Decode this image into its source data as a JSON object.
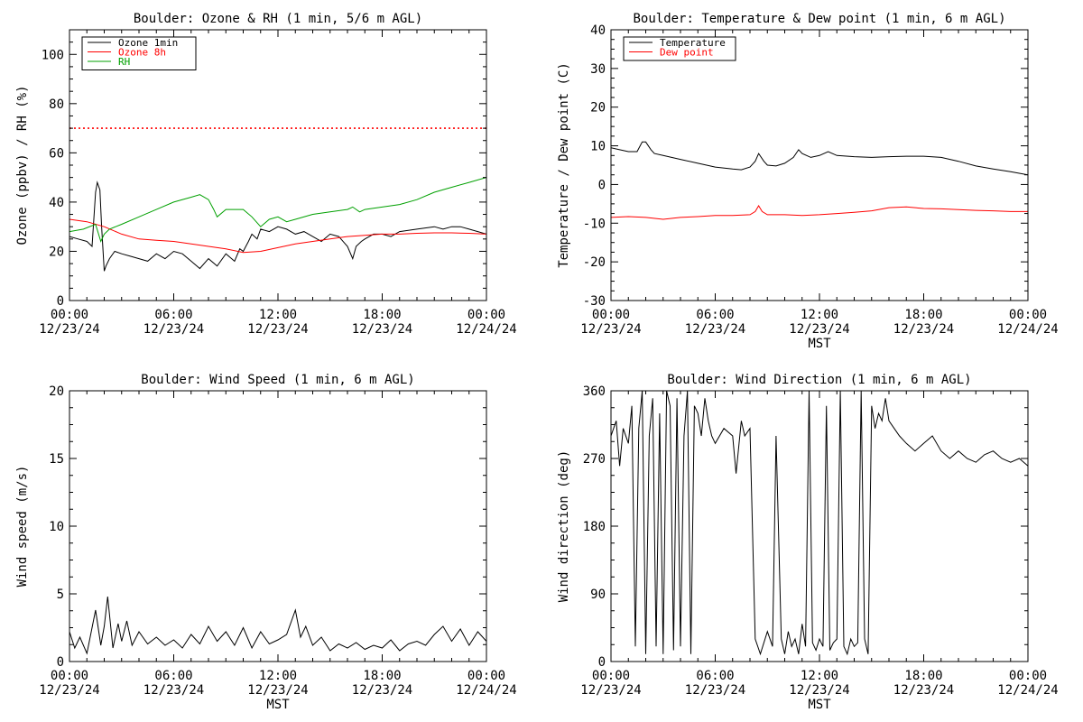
{
  "colors": {
    "background": "#ffffff",
    "axes": "#000000",
    "black_series": "#000000",
    "red_series": "#ff0000",
    "green_series": "#00a000"
  },
  "chart_data": [
    {
      "id": "ozone-rh",
      "type": "line",
      "title": "Boulder: Ozone & RH (1 min, 5/6 m AGL)",
      "xlabel": "",
      "ylabel": "Ozone (ppbv) / RH (%)",
      "xlim": [
        0,
        24
      ],
      "ylim": [
        0,
        110
      ],
      "x_ticks": [
        0,
        6,
        12,
        18,
        24
      ],
      "x_tick_labels": [
        [
          "00:00",
          "12/23/24"
        ],
        [
          "06:00",
          "12/23/24"
        ],
        [
          "12:00",
          "12/23/24"
        ],
        [
          "18:00",
          "12/23/24"
        ],
        [
          "00:00",
          "12/24/24"
        ]
      ],
      "y_ticks": [
        0,
        20,
        40,
        60,
        80,
        100
      ],
      "y_tick_labels": [
        "0",
        "20",
        "40",
        "60",
        "80",
        "100"
      ],
      "grid": false,
      "legend_position": "top-left",
      "series": [
        {
          "name": "Ozone 1min",
          "color": "#000000",
          "x": [
            0,
            0.5,
            1.0,
            1.3,
            1.5,
            1.6,
            1.75,
            1.85,
            2.0,
            2.1,
            2.3,
            2.6,
            3.0,
            3.5,
            4.0,
            4.5,
            5.0,
            5.5,
            6.0,
            6.5,
            7.0,
            7.5,
            8.0,
            8.5,
            9.0,
            9.5,
            9.8,
            10.0,
            10.3,
            10.5,
            10.8,
            11.0,
            11.5,
            12.0,
            12.5,
            13.0,
            13.5,
            14.0,
            14.5,
            15.0,
            15.5,
            16.0,
            16.3,
            16.5,
            16.8,
            17.0,
            17.5,
            18.0,
            18.5,
            19.0,
            20.0,
            21.0,
            21.5,
            22.0,
            22.5,
            23.0,
            23.5,
            24.0
          ],
          "y": [
            26,
            25,
            24,
            22,
            44,
            48,
            45,
            30,
            12,
            14,
            17,
            20,
            19,
            18,
            17,
            16,
            19,
            17,
            20,
            19,
            16,
            13,
            17,
            14,
            19,
            16,
            21,
            20,
            24,
            27,
            25,
            29,
            28,
            30,
            29,
            27,
            28,
            26,
            24,
            27,
            26,
            22,
            17,
            22,
            24,
            25,
            27,
            27,
            26,
            28,
            29,
            30,
            29,
            30,
            30,
            29,
            28,
            27
          ]
        },
        {
          "name": "Ozone 8h",
          "color": "#ff0000",
          "x": [
            0,
            1,
            2,
            3,
            4,
            5,
            6,
            7,
            8,
            9,
            10,
            11,
            12,
            13,
            14,
            15,
            16,
            17,
            18,
            19,
            20,
            21,
            22,
            23,
            24
          ],
          "y": [
            33,
            32,
            30,
            27,
            25,
            24.5,
            24,
            23,
            22,
            21,
            19.5,
            20,
            21.5,
            23,
            24,
            25,
            26,
            26.5,
            27,
            27,
            27.3,
            27.5,
            27.5,
            27.3,
            27
          ]
        },
        {
          "name": "RH",
          "color": "#00a000",
          "x": [
            0,
            0.8,
            1.5,
            1.8,
            2.0,
            2.3,
            3.0,
            4.0,
            5.0,
            6.0,
            7.0,
            7.5,
            8.0,
            8.3,
            8.5,
            9.0,
            10.0,
            10.5,
            11.0,
            11.5,
            12.0,
            12.5,
            13.0,
            14.0,
            15.0,
            16.0,
            16.3,
            16.7,
            17.0,
            18.0,
            19.0,
            20.0,
            21.0,
            22.0,
            23.0,
            24.0
          ],
          "y": [
            28,
            29,
            31,
            24,
            27,
            29,
            31,
            34,
            37,
            40,
            42,
            43,
            41,
            37,
            34,
            37,
            37,
            34,
            30,
            33,
            34,
            32,
            33,
            35,
            36,
            37,
            38,
            36,
            37,
            38,
            39,
            41,
            44,
            46,
            48,
            50
          ]
        }
      ],
      "reference_lines": [
        {
          "y": 70,
          "color": "#ff0000",
          "style": "dotted"
        }
      ]
    },
    {
      "id": "temperature-dewpoint",
      "type": "line",
      "title": "Boulder: Temperature & Dew point (1 min, 6 m AGL)",
      "xlabel": "MST",
      "ylabel": "Temperature / Dew point (C)",
      "xlim": [
        0,
        24
      ],
      "ylim": [
        -30,
        40
      ],
      "x_ticks": [
        0,
        6,
        12,
        18,
        24
      ],
      "x_tick_labels": [
        [
          "00:00",
          "12/23/24"
        ],
        [
          "06:00",
          "12/23/24"
        ],
        [
          "12:00",
          "12/23/24"
        ],
        [
          "18:00",
          "12/23/24"
        ],
        [
          "00:00",
          "12/24/24"
        ]
      ],
      "y_ticks": [
        -30,
        -20,
        -10,
        0,
        10,
        20,
        30,
        40
      ],
      "y_tick_labels": [
        "-30",
        "-20",
        "-10",
        "0",
        "10",
        "20",
        "30",
        "40"
      ],
      "grid": false,
      "legend_position": "top-left",
      "series": [
        {
          "name": "Temperature",
          "color": "#000000",
          "x": [
            0,
            0.5,
            1.0,
            1.5,
            1.8,
            2.0,
            2.3,
            2.5,
            3.0,
            4.0,
            5.0,
            6.0,
            7.0,
            7.5,
            8.0,
            8.3,
            8.5,
            8.8,
            9.0,
            9.5,
            10.0,
            10.5,
            10.8,
            11.0,
            11.5,
            12.0,
            12.5,
            13.0,
            14.0,
            15.0,
            16.0,
            17.0,
            18.0,
            19.0,
            20.0,
            21.0,
            22.0,
            23.0,
            24.0
          ],
          "y": [
            9.5,
            9,
            8.5,
            8.5,
            11,
            11,
            9,
            8,
            7.5,
            6.5,
            5.5,
            4.5,
            4,
            3.8,
            4.5,
            6,
            8,
            6,
            5,
            4.8,
            5.5,
            7,
            9,
            8,
            7,
            7.5,
            8.5,
            7.5,
            7.2,
            7,
            7.2,
            7.3,
            7.3,
            7,
            6,
            4.8,
            4,
            3.3,
            2.5
          ]
        },
        {
          "name": "Dew point",
          "color": "#ff0000",
          "x": [
            0,
            1,
            2,
            3,
            4,
            5,
            6,
            7,
            8,
            8.3,
            8.5,
            8.7,
            9,
            10,
            11,
            12,
            13,
            14,
            15,
            16,
            17,
            18,
            19,
            20,
            21,
            22,
            23,
            24
          ],
          "y": [
            -8.5,
            -8.3,
            -8.5,
            -9,
            -8.5,
            -8.3,
            -8,
            -8,
            -7.8,
            -7,
            -5.5,
            -7,
            -7.8,
            -7.8,
            -8,
            -7.8,
            -7.5,
            -7.2,
            -6.8,
            -6,
            -5.8,
            -6.2,
            -6.3,
            -6.5,
            -6.7,
            -6.8,
            -7,
            -7
          ]
        }
      ]
    },
    {
      "id": "wind-speed",
      "type": "line",
      "title": "Boulder: Wind Speed (1 min, 6 m AGL)",
      "xlabel": "MST",
      "ylabel": "Wind speed (m/s)",
      "xlim": [
        0,
        24
      ],
      "ylim": [
        0,
        20
      ],
      "x_ticks": [
        0,
        6,
        12,
        18,
        24
      ],
      "x_tick_labels": [
        [
          "00:00",
          "12/23/24"
        ],
        [
          "06:00",
          "12/23/24"
        ],
        [
          "12:00",
          "12/23/24"
        ],
        [
          "18:00",
          "12/23/24"
        ],
        [
          "00:00",
          "12/24/24"
        ]
      ],
      "y_ticks": [
        0,
        5,
        10,
        15,
        20
      ],
      "y_tick_labels": [
        "0",
        "5",
        "10",
        "15",
        "20"
      ],
      "grid": false,
      "series": [
        {
          "name": "",
          "color": "#000000",
          "x": [
            0,
            0.3,
            0.6,
            1.0,
            1.3,
            1.5,
            1.8,
            2.0,
            2.2,
            2.5,
            2.8,
            3.0,
            3.3,
            3.6,
            4.0,
            4.5,
            5.0,
            5.5,
            6.0,
            6.5,
            7.0,
            7.5,
            8.0,
            8.5,
            9.0,
            9.5,
            10.0,
            10.5,
            11.0,
            11.5,
            12.0,
            12.5,
            13.0,
            13.3,
            13.6,
            14.0,
            14.5,
            15.0,
            15.5,
            16.0,
            16.5,
            17.0,
            17.5,
            18.0,
            18.5,
            19.0,
            19.5,
            20.0,
            20.5,
            21.0,
            21.5,
            22.0,
            22.5,
            23.0,
            23.5,
            24.0
          ],
          "y": [
            2.2,
            1.0,
            1.8,
            0.6,
            2.5,
            3.8,
            1.2,
            2.6,
            4.8,
            1.0,
            2.8,
            1.5,
            3.0,
            1.2,
            2.2,
            1.3,
            1.8,
            1.2,
            1.6,
            1.0,
            2.0,
            1.3,
            2.6,
            1.5,
            2.2,
            1.2,
            2.5,
            1.0,
            2.2,
            1.3,
            1.6,
            2.0,
            3.8,
            1.8,
            2.6,
            1.2,
            1.8,
            0.8,
            1.3,
            1.0,
            1.4,
            0.9,
            1.2,
            1.0,
            1.6,
            0.8,
            1.3,
            1.5,
            1.2,
            2.0,
            2.6,
            1.5,
            2.4,
            1.2,
            2.2,
            1.5
          ]
        }
      ]
    },
    {
      "id": "wind-direction",
      "type": "line",
      "title": "Boulder: Wind Direction (1 min, 6 m AGL)",
      "xlabel": "MST",
      "ylabel": "Wind direction (deg)",
      "xlim": [
        0,
        24
      ],
      "ylim": [
        0,
        360
      ],
      "x_ticks": [
        0,
        6,
        12,
        18,
        24
      ],
      "x_tick_labels": [
        [
          "00:00",
          "12/23/24"
        ],
        [
          "06:00",
          "12/23/24"
        ],
        [
          "12:00",
          "12/23/24"
        ],
        [
          "18:00",
          "12/23/24"
        ],
        [
          "00:00",
          "12/24/24"
        ]
      ],
      "y_ticks": [
        0,
        90,
        180,
        270,
        360
      ],
      "y_tick_labels": [
        "0",
        "90",
        "180",
        "270",
        "360"
      ],
      "grid": false,
      "series": [
        {
          "name": "",
          "color": "#000000",
          "x": [
            0,
            0.3,
            0.5,
            0.7,
            1.0,
            1.2,
            1.4,
            1.6,
            1.8,
            2.0,
            2.2,
            2.4,
            2.6,
            2.8,
            3.0,
            3.2,
            3.4,
            3.6,
            3.8,
            4.0,
            4.2,
            4.4,
            4.6,
            4.8,
            5.0,
            5.2,
            5.4,
            5.6,
            5.8,
            6.0,
            6.5,
            7.0,
            7.2,
            7.5,
            7.7,
            8.0,
            8.3,
            8.6,
            9.0,
            9.3,
            9.5,
            9.8,
            10.0,
            10.2,
            10.4,
            10.6,
            10.8,
            11.0,
            11.2,
            11.4,
            11.6,
            11.8,
            12.0,
            12.2,
            12.4,
            12.6,
            12.8,
            13.0,
            13.2,
            13.4,
            13.6,
            13.8,
            14.0,
            14.2,
            14.4,
            14.6,
            14.8,
            15.0,
            15.2,
            15.4,
            15.6,
            15.8,
            16.0,
            16.3,
            16.6,
            17.0,
            17.5,
            18.0,
            18.5,
            19.0,
            19.5,
            20.0,
            20.5,
            21.0,
            21.5,
            22.0,
            22.5,
            23.0,
            23.5,
            24.0
          ],
          "y": [
            300,
            320,
            260,
            310,
            290,
            340,
            20,
            310,
            360,
            10,
            300,
            350,
            20,
            330,
            10,
            360,
            340,
            15,
            350,
            20,
            300,
            360,
            10,
            340,
            330,
            300,
            350,
            320,
            300,
            290,
            310,
            300,
            250,
            320,
            300,
            310,
            30,
            10,
            40,
            20,
            300,
            30,
            10,
            40,
            20,
            30,
            10,
            50,
            20,
            360,
            25,
            15,
            30,
            20,
            340,
            15,
            25,
            30,
            360,
            20,
            10,
            30,
            20,
            25,
            360,
            30,
            10,
            340,
            310,
            330,
            320,
            350,
            320,
            310,
            300,
            290,
            280,
            290,
            300,
            280,
            270,
            280,
            270,
            265,
            275,
            280,
            270,
            265,
            270,
            260
          ]
        }
      ]
    }
  ]
}
